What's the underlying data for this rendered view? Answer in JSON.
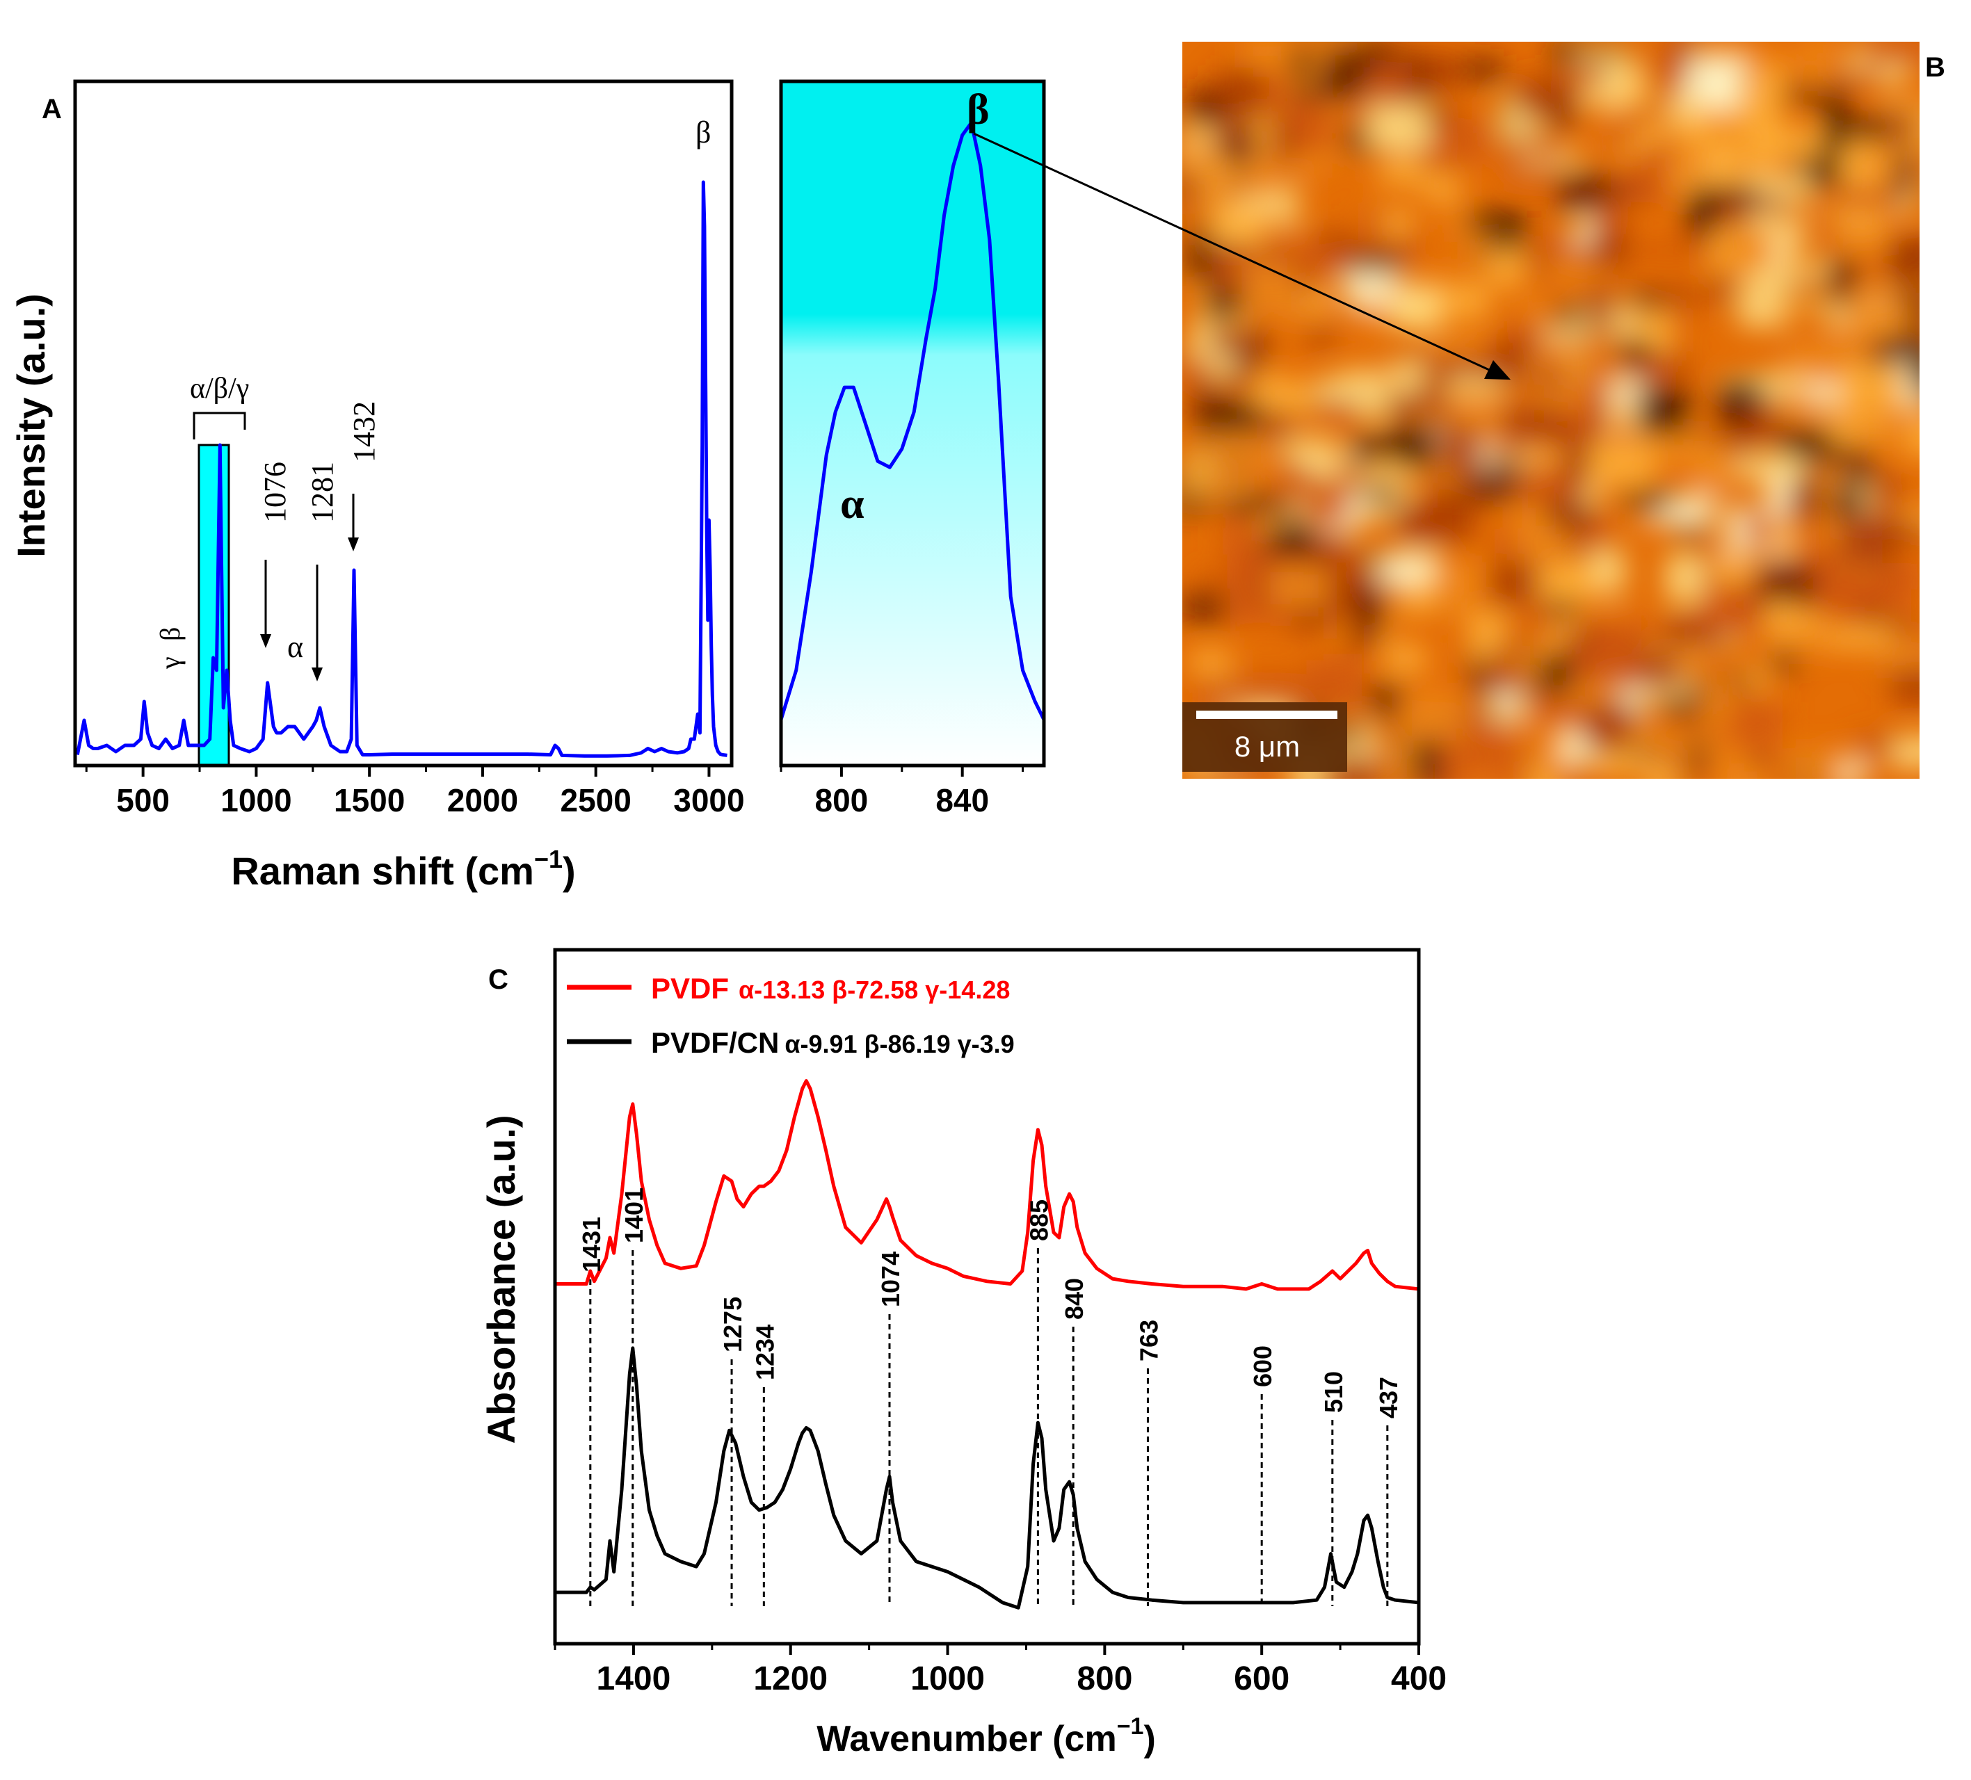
{
  "panels": {
    "a": {
      "letter": "A",
      "ylabel": "Intensity (a.u.)",
      "xlabel_main": "Raman shift (cm",
      "xlabel_sup": "−1",
      "xlabel_close": ")",
      "annotations": {
        "gamma": "γ",
        "beta_left": "β",
        "alpha_beta_gamma": "α/β/γ",
        "p1076": "1076",
        "alpha_small": "α",
        "p1281": "1281",
        "p1432": "1432",
        "beta_top": "β"
      }
    },
    "a_zoom": {
      "alpha": "α",
      "beta": "β"
    },
    "b": {
      "letter": "B",
      "scale_bar": "8 μm"
    },
    "c": {
      "letter": "C",
      "ylabel": "Absorbance (a.u.)",
      "xlabel_main": "Wavenumber (cm",
      "xlabel_sup": "−1",
      "xlabel_close": ")",
      "legend": [
        {
          "name": "PVDF",
          "fractions": "α-13.13 β-72.58 γ-14.28",
          "color": "#ff0000"
        },
        {
          "name": "PVDF/CN",
          "fractions": "α-9.91 β-86.19 γ-3.9",
          "color": "#000000"
        }
      ],
      "peak_labels": [
        "1431",
        "1401",
        "1275",
        "1234",
        "1074",
        "885",
        "840",
        "763",
        "600",
        "510",
        "437"
      ]
    }
  },
  "chart_data": [
    {
      "panel": "A",
      "type": "line",
      "title": "",
      "xlabel": "Raman shift (cm−1)",
      "ylabel": "Intensity (a.u.)",
      "xlim": [
        200,
        3100
      ],
      "ylim": [
        0,
        100
      ],
      "xticks": [
        500,
        1000,
        1500,
        2000,
        2500,
        3000
      ],
      "series": [
        {
          "name": "Raman spectrum",
          "color": "#0000ff",
          "x": [
            210,
            240,
            260,
            280,
            300,
            340,
            380,
            420,
            460,
            490,
            505,
            520,
            540,
            570,
            600,
            630,
            660,
            680,
            700,
            720,
            740,
            770,
            795,
            810,
            825,
            840,
            855,
            870,
            885,
            900,
            930,
            970,
            1000,
            1030,
            1050,
            1076,
            1090,
            1110,
            1140,
            1170,
            1190,
            1210,
            1230,
            1250,
            1265,
            1281,
            1300,
            1330,
            1370,
            1400,
            1420,
            1432,
            1445,
            1470,
            1500,
            1600,
            1800,
            2000,
            2200,
            2300,
            2320,
            2335,
            2350,
            2450,
            2550,
            2650,
            2700,
            2730,
            2760,
            2790,
            2820,
            2860,
            2890,
            2910,
            2920,
            2935,
            2950,
            2960,
            2970,
            2975,
            2980,
            2985,
            2990,
            2995,
            3000,
            3005,
            3010,
            3015,
            3020,
            3030,
            3040,
            3050,
            3060,
            3080
          ],
          "y": [
            0.5,
            6,
            2,
            1.5,
            1.5,
            2,
            1,
            2,
            2,
            3,
            9,
            4,
            2,
            1.5,
            3,
            1.5,
            2,
            6,
            2,
            2,
            2,
            2,
            3,
            16,
            14,
            50,
            8,
            14,
            6,
            2,
            1.5,
            1,
            1.5,
            3,
            12,
            5,
            4,
            4,
            5,
            5,
            4,
            3,
            4,
            5,
            6,
            8,
            5,
            2,
            1,
            1,
            3,
            30,
            2,
            0.5,
            0.5,
            0.6,
            0.6,
            0.6,
            0.6,
            0.5,
            2,
            1.5,
            0.4,
            0.3,
            0.3,
            0.4,
            0.8,
            1.5,
            1,
            1.5,
            1,
            0.8,
            1,
            1.5,
            3,
            3,
            7,
            4,
            50,
            92,
            85,
            60,
            36,
            22,
            38,
            30,
            18,
            10,
            5,
            2,
            1,
            0.6,
            0.5,
            0.4
          ]
        }
      ],
      "annotations": [
        {
          "text": "1076",
          "x": 1076
        },
        {
          "text": "1281",
          "x": 1281
        },
        {
          "text": "1432",
          "x": 1432
        },
        {
          "text": "α/β/γ",
          "x": 840
        },
        {
          "text": "β",
          "x": 2970
        }
      ]
    },
    {
      "panel": "A (zoom)",
      "type": "line",
      "xlim": [
        780,
        867
      ],
      "ylim": [
        0,
        100
      ],
      "xticks": [
        800,
        840
      ],
      "series": [
        {
          "name": "Raman spectrum (zoom)",
          "color": "#0000ff",
          "x": [
            780,
            785,
            790,
            795,
            798,
            801,
            804,
            808,
            812,
            816,
            820,
            824,
            828,
            831,
            834,
            837,
            840,
            843,
            846,
            849,
            852,
            856,
            860,
            864,
            867
          ],
          "y": [
            0,
            8,
            24,
            43,
            50,
            54,
            54,
            48,
            42,
            41,
            44,
            50,
            62,
            70,
            82,
            90,
            95,
            97,
            90,
            78,
            55,
            20,
            8,
            3,
            0
          ]
        }
      ]
    },
    {
      "panel": "C",
      "type": "line",
      "title": "",
      "xlabel": "Wavenumber (cm−1)",
      "ylabel": "Absorbance (a.u.)",
      "xlim": [
        1500,
        400
      ],
      "ylim": [
        -0.1,
        2.6
      ],
      "xticks": [
        1400,
        1200,
        1000,
        800,
        600,
        400
      ],
      "series": [
        {
          "name": "PVDF",
          "color": "#ff0000",
          "x": [
            1500,
            1460,
            1455,
            1450,
            1435,
            1430,
            1425,
            1415,
            1405,
            1401,
            1396,
            1390,
            1380,
            1370,
            1360,
            1340,
            1320,
            1310,
            1295,
            1285,
            1275,
            1268,
            1260,
            1250,
            1240,
            1234,
            1225,
            1215,
            1205,
            1195,
            1185,
            1180,
            1175,
            1165,
            1155,
            1145,
            1130,
            1110,
            1090,
            1078,
            1074,
            1070,
            1060,
            1040,
            1020,
            1000,
            980,
            950,
            920,
            905,
            898,
            891,
            885,
            880,
            875,
            865,
            858,
            852,
            845,
            840,
            835,
            825,
            810,
            790,
            770,
            740,
            700,
            650,
            620,
            600,
            580,
            540,
            525,
            510,
            500,
            490,
            480,
            470,
            465,
            460,
            450,
            440,
            430,
            400
          ],
          "y": [
            1.3,
            1.3,
            1.35,
            1.31,
            1.4,
            1.48,
            1.42,
            1.65,
            1.95,
            2.0,
            1.88,
            1.7,
            1.55,
            1.45,
            1.38,
            1.36,
            1.37,
            1.45,
            1.62,
            1.72,
            1.7,
            1.63,
            1.6,
            1.65,
            1.68,
            1.68,
            1.7,
            1.74,
            1.82,
            1.95,
            2.06,
            2.09,
            2.06,
            1.95,
            1.82,
            1.68,
            1.52,
            1.46,
            1.55,
            1.63,
            1.6,
            1.56,
            1.47,
            1.41,
            1.38,
            1.36,
            1.33,
            1.31,
            1.3,
            1.35,
            1.5,
            1.78,
            1.9,
            1.84,
            1.68,
            1.5,
            1.48,
            1.6,
            1.65,
            1.62,
            1.52,
            1.42,
            1.36,
            1.32,
            1.31,
            1.3,
            1.29,
            1.29,
            1.28,
            1.3,
            1.28,
            1.28,
            1.31,
            1.35,
            1.32,
            1.35,
            1.38,
            1.42,
            1.43,
            1.38,
            1.34,
            1.31,
            1.29,
            1.28
          ]
        },
        {
          "name": "PVDF/CN",
          "color": "#000000",
          "x": [
            1500,
            1460,
            1455,
            1450,
            1435,
            1430,
            1425,
            1415,
            1405,
            1401,
            1396,
            1390,
            1380,
            1370,
            1360,
            1340,
            1320,
            1310,
            1295,
            1285,
            1278,
            1270,
            1260,
            1250,
            1240,
            1230,
            1220,
            1210,
            1200,
            1190,
            1185,
            1180,
            1175,
            1165,
            1155,
            1145,
            1130,
            1110,
            1090,
            1078,
            1074,
            1070,
            1060,
            1040,
            1000,
            960,
            930,
            910,
            898,
            891,
            885,
            880,
            875,
            865,
            858,
            852,
            845,
            840,
            835,
            825,
            810,
            790,
            770,
            740,
            700,
            650,
            600,
            560,
            530,
            520,
            512,
            505,
            495,
            485,
            478,
            470,
            465,
            460,
            452,
            445,
            440,
            430,
            400
          ],
          "y": [
            0.1,
            0.1,
            0.12,
            0.11,
            0.15,
            0.3,
            0.18,
            0.5,
            0.95,
            1.05,
            0.9,
            0.65,
            0.42,
            0.32,
            0.25,
            0.22,
            0.2,
            0.25,
            0.45,
            0.65,
            0.73,
            0.68,
            0.55,
            0.45,
            0.42,
            0.43,
            0.45,
            0.5,
            0.58,
            0.68,
            0.72,
            0.74,
            0.73,
            0.65,
            0.52,
            0.4,
            0.3,
            0.25,
            0.3,
            0.5,
            0.55,
            0.45,
            0.3,
            0.22,
            0.18,
            0.12,
            0.06,
            0.04,
            0.2,
            0.6,
            0.76,
            0.7,
            0.5,
            0.3,
            0.35,
            0.5,
            0.53,
            0.48,
            0.35,
            0.22,
            0.15,
            0.1,
            0.08,
            0.07,
            0.06,
            0.06,
            0.06,
            0.06,
            0.07,
            0.12,
            0.25,
            0.14,
            0.12,
            0.18,
            0.25,
            0.38,
            0.4,
            0.35,
            0.22,
            0.12,
            0.08,
            0.07,
            0.06
          ]
        }
      ],
      "peak_markers": [
        1455,
        1401,
        1275,
        1234,
        1074,
        885,
        840,
        745,
        600,
        510,
        440
      ]
    }
  ]
}
